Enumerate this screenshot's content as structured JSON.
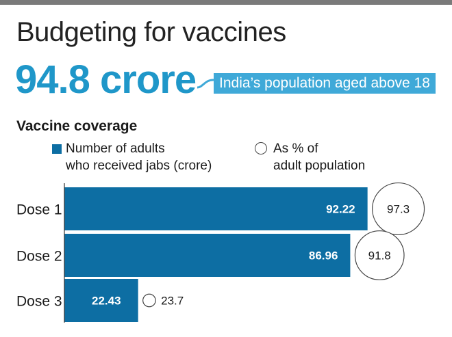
{
  "title": "Budgeting for vaccines",
  "headline": {
    "figure": "94.8 crore",
    "caption": "India’s population aged above 18"
  },
  "colors": {
    "accent": "#1f97c9",
    "callout": "#3fa9d8",
    "bar": "#0d6ea3",
    "rule": "#7a7a7a"
  },
  "chart_data": {
    "type": "bar",
    "orientation": "horizontal",
    "title": "Vaccine coverage",
    "categories": [
      "Dose 1",
      "Dose 2",
      "Dose 3"
    ],
    "series": [
      {
        "name": "Number of  adults who received jabs (crore)",
        "values": [
          92.22,
          86.96,
          22.43
        ],
        "labels": [
          "92.22",
          "86.96",
          "22.43"
        ],
        "marker": "bar"
      },
      {
        "name": "As % of adult population",
        "values": [
          97.3,
          91.8,
          23.7
        ],
        "labels": [
          "97.3",
          "91.8",
          "23.7"
        ],
        "marker": "circle"
      }
    ],
    "legend": {
      "bars_line1": "Number of  adults",
      "bars_line2": "who received jabs (crore)",
      "circles_line1": "As % of",
      "circles_line2": "adult population",
      "position": "top"
    },
    "grid": false,
    "xlim": [
      0,
      100
    ]
  }
}
